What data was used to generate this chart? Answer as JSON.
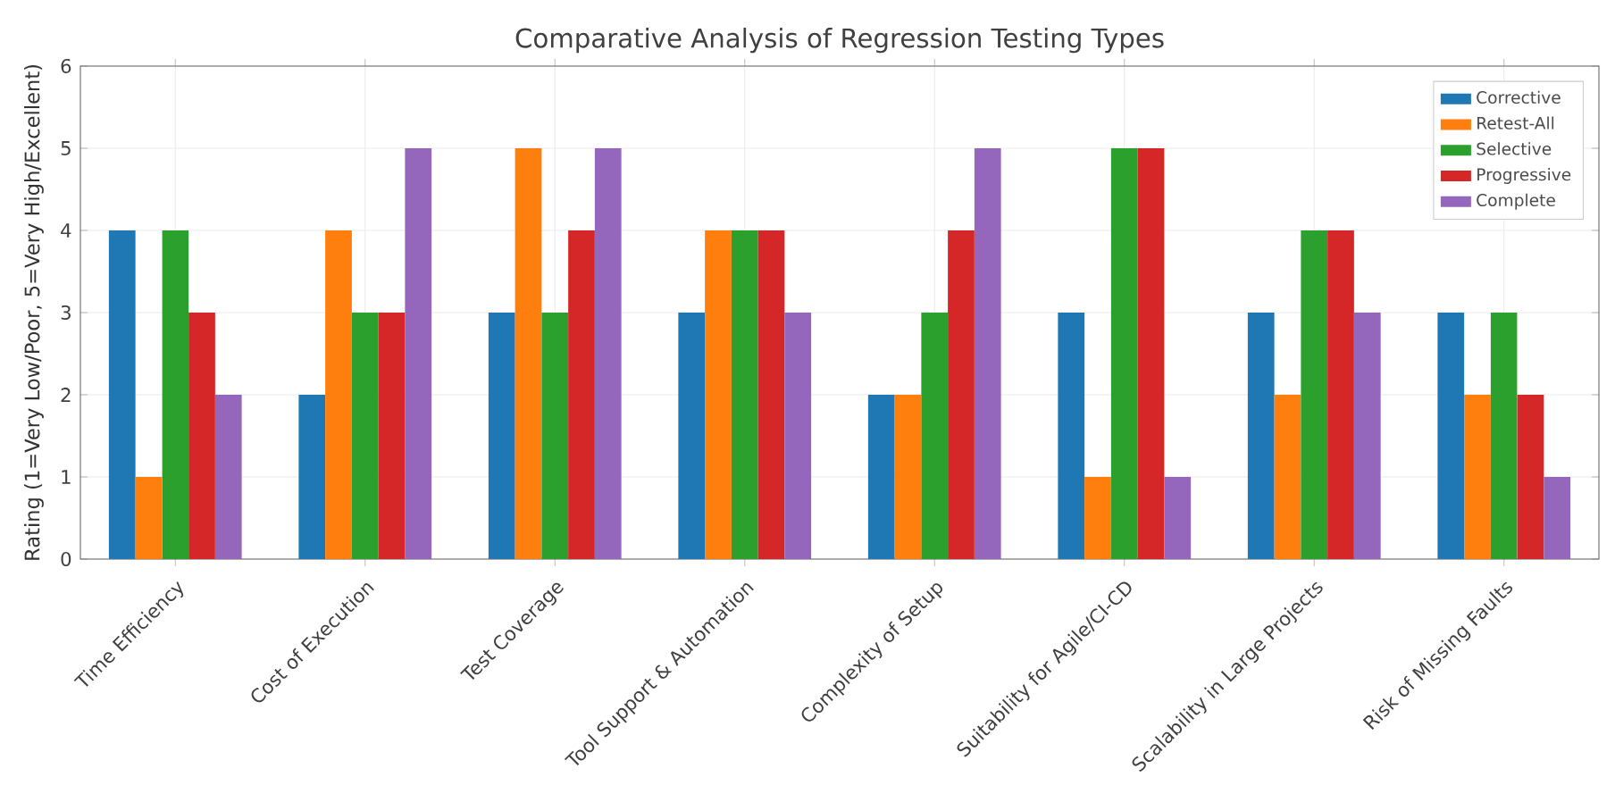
{
  "chart_data": {
    "type": "bar",
    "title": "Comparative Analysis of Regression Testing Types",
    "ylabel": "Rating (1=Very Low/Poor, 5=Very High/Excellent)",
    "categories": [
      "Time Efficiency",
      "Cost of Execution",
      "Test Coverage",
      "Tool Support & Automation",
      "Complexity of Setup",
      "Suitability for Agile/CI-CD",
      "Scalability in Large Projects",
      "Risk of Missing Faults"
    ],
    "series": [
      {
        "name": "Corrective",
        "color": "#1f77b4",
        "values": [
          4,
          2,
          3,
          3,
          2,
          3,
          3,
          3
        ]
      },
      {
        "name": "Retest-All",
        "color": "#ff7f0e",
        "values": [
          1,
          4,
          5,
          4,
          2,
          1,
          2,
          2
        ]
      },
      {
        "name": "Selective",
        "color": "#2ca02c",
        "values": [
          4,
          3,
          3,
          4,
          3,
          5,
          4,
          3
        ]
      },
      {
        "name": "Progressive",
        "color": "#d62728",
        "values": [
          3,
          3,
          4,
          4,
          4,
          5,
          4,
          2
        ]
      },
      {
        "name": "Complete",
        "color": "#9467bd",
        "values": [
          2,
          5,
          5,
          3,
          5,
          1,
          3,
          1
        ]
      }
    ],
    "ylim": [
      0,
      6
    ],
    "yticks": [
      0,
      1,
      2,
      3,
      4,
      5,
      6
    ],
    "grid": true,
    "legend": "top right"
  }
}
